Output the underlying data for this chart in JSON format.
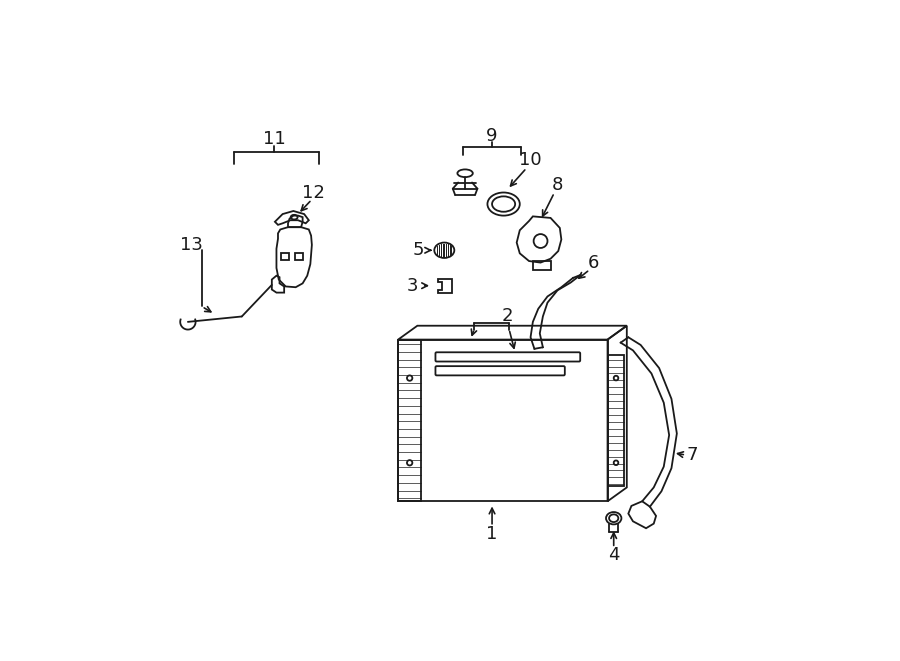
{
  "background_color": "#ffffff",
  "line_color": "#1a1a1a",
  "label_fontsize": 13,
  "fig_width": 9.0,
  "fig_height": 6.61,
  "dpi": 100
}
